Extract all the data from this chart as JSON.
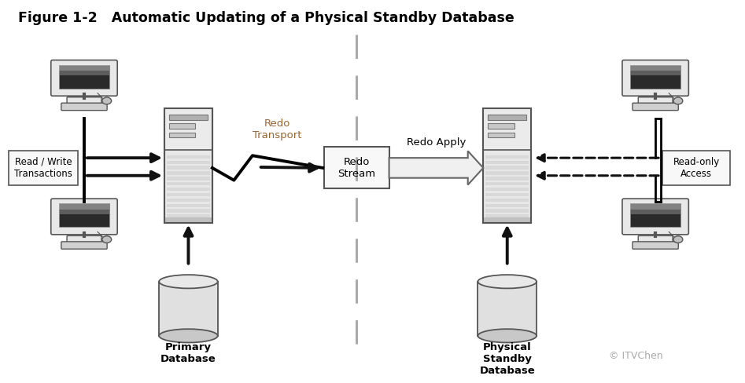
{
  "title": "Figure 1-2   Automatic Updating of a Physical Standby Database",
  "title_color": "#000000",
  "title_fontsize": 12.5,
  "bg_color": "#ffffff",
  "fig_width": 9.47,
  "fig_height": 4.88,
  "dpi": 100,
  "redo_transport_label": "Redo\nTransport",
  "redo_stream_label": "Redo\nStream",
  "redo_apply_label": "Redo Apply",
  "read_write_label": "Read / Write\nTransactions",
  "read_only_label": "Read-only\nAccess",
  "primary_db_label": "Primary\nDatabase",
  "physical_standby_label": "Physical\nStandby\nDatabase",
  "accent_color": "#996633",
  "body_gray": "#e8e8e8",
  "dark_gray": "#555555",
  "mid_gray": "#aaaaaa",
  "screen_top": "#c8c8c8",
  "screen_bot": "#202020",
  "box_fill": "#f8f8f8",
  "server_top_fill": "#e0e0e0",
  "server_stripe": "#d0d0d0",
  "dashed_color": "#111111",
  "arrow_color": "#111111",
  "divider_color": "#aaaaaa",
  "watermark_color": "#aaaaaa"
}
